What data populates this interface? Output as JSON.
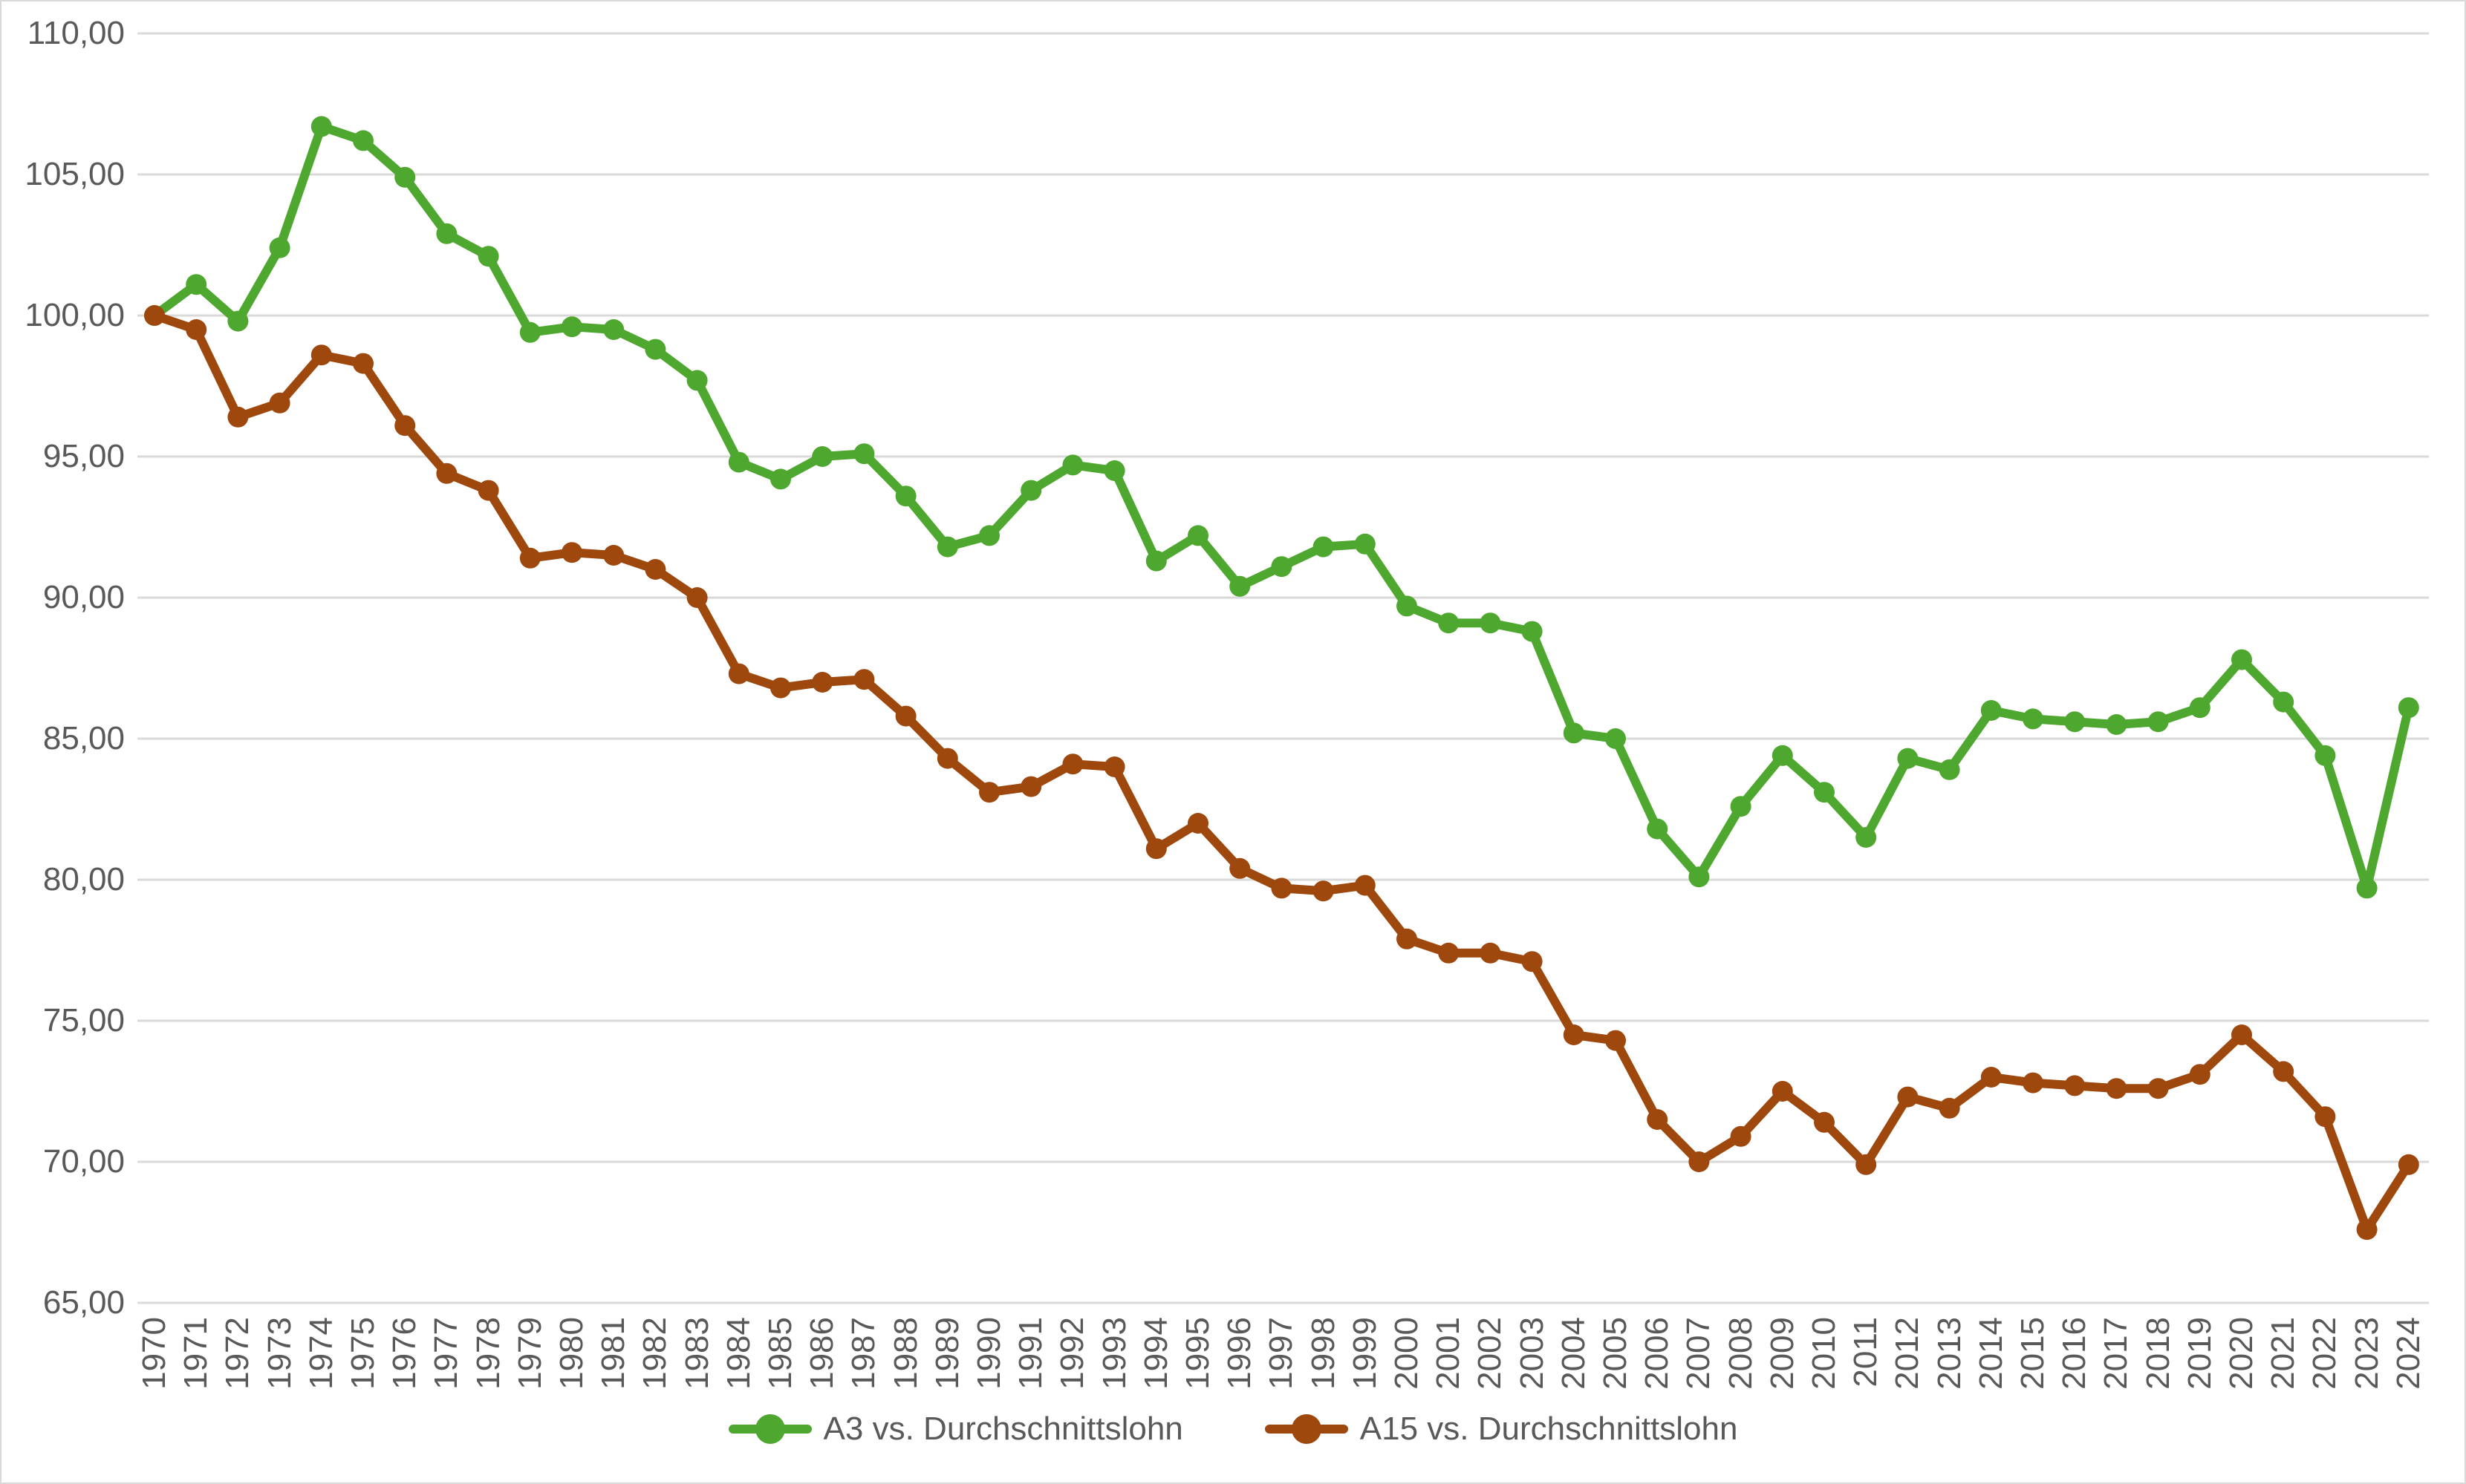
{
  "chart_data": {
    "type": "line",
    "title": "",
    "xlabel": "",
    "ylabel": "",
    "x": [
      1970,
      1971,
      1972,
      1973,
      1974,
      1975,
      1976,
      1977,
      1978,
      1979,
      1980,
      1981,
      1982,
      1983,
      1984,
      1985,
      1986,
      1987,
      1988,
      1989,
      1990,
      1991,
      1992,
      1993,
      1994,
      1995,
      1996,
      1997,
      1998,
      1999,
      2000,
      2001,
      2002,
      2003,
      2004,
      2005,
      2006,
      2007,
      2008,
      2009,
      2010,
      2011,
      2012,
      2013,
      2014,
      2015,
      2016,
      2017,
      2018,
      2019,
      2020,
      2021,
      2022,
      2023,
      2024
    ],
    "series": [
      {
        "name": "A3 vs. Durchschnittslohn",
        "color": "#4ea72e",
        "values": [
          100.0,
          101.1,
          99.8,
          102.4,
          106.7,
          106.2,
          104.9,
          102.9,
          102.1,
          99.4,
          99.6,
          99.5,
          98.8,
          97.7,
          94.8,
          94.2,
          95.0,
          95.1,
          93.6,
          91.8,
          92.2,
          93.8,
          94.7,
          94.5,
          91.3,
          92.2,
          90.4,
          91.1,
          91.8,
          91.9,
          89.7,
          89.1,
          89.1,
          88.8,
          85.2,
          85.0,
          81.8,
          80.1,
          82.6,
          84.4,
          83.1,
          81.5,
          84.3,
          83.9,
          86.0,
          85.7,
          85.6,
          85.5,
          85.6,
          86.1,
          87.8,
          86.3,
          84.4,
          79.7,
          86.1
        ]
      },
      {
        "name": "A15 vs. Durchschnittslohn",
        "color": "#9e480e",
        "values": [
          100.0,
          99.5,
          96.4,
          96.9,
          98.6,
          98.3,
          96.1,
          94.4,
          93.8,
          91.4,
          91.6,
          91.5,
          91.0,
          90.0,
          87.3,
          86.8,
          87.0,
          87.1,
          85.8,
          84.3,
          83.1,
          83.3,
          84.1,
          84.0,
          81.1,
          82.0,
          80.4,
          79.7,
          79.6,
          79.8,
          77.9,
          77.4,
          77.4,
          77.1,
          74.5,
          74.3,
          71.5,
          70.0,
          70.9,
          72.5,
          71.4,
          69.9,
          72.3,
          71.9,
          73.0,
          72.8,
          72.7,
          72.6,
          72.6,
          73.1,
          74.5,
          73.2,
          71.6,
          67.6,
          69.9
        ]
      }
    ],
    "ylim": [
      65,
      110
    ],
    "ytick_values": [
      65,
      70,
      75,
      80,
      85,
      90,
      95,
      100,
      105,
      110
    ],
    "ytick_labels": [
      "65,00",
      "70,00",
      "75,00",
      "80,00",
      "85,00",
      "90,00",
      "95,00",
      "100,00",
      "105,00",
      "110,00"
    ],
    "grid": "horizontal",
    "gridline_color": "#d9d9d9",
    "axis_text_color": "#595959",
    "background_color": "#ffffff",
    "border_color": "#d9d9d9",
    "legend_position": "bottom-center"
  }
}
